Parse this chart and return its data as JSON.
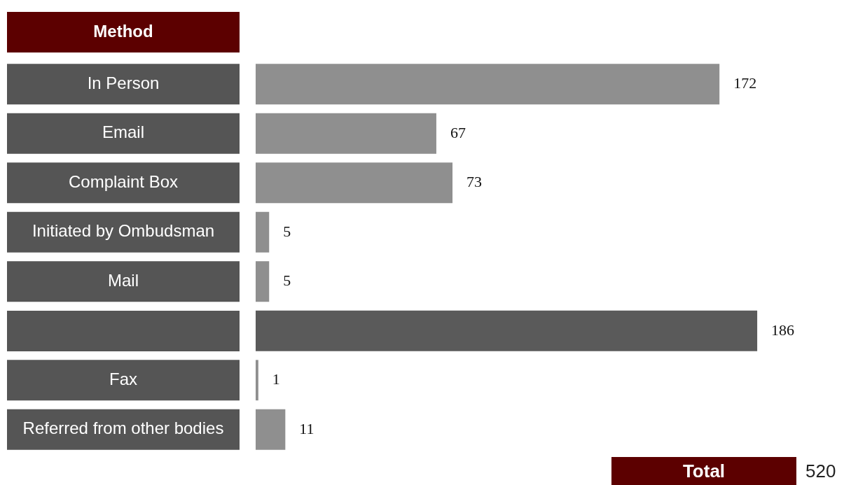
{
  "chart_data": {
    "type": "bar",
    "orientation": "horizontal",
    "ylabel": "Method",
    "categories": [
      "In Person",
      "Email",
      "Complaint Box",
      "Initiated by Ombudsman",
      "Mail",
      null,
      "Fax",
      "Referred from other bodies"
    ],
    "values": [
      172,
      67,
      73,
      5,
      5,
      186,
      1,
      11
    ],
    "colors": [
      "#8f8f8f",
      "#8f8f8f",
      "#8f8f8f",
      "#8f8f8f",
      "#8f8f8f",
      "#5a5a5a",
      "#8f8f8f",
      "#8f8f8f"
    ],
    "data_labels": true,
    "legend": false,
    "annotations": [
      "Total",
      "520"
    ]
  }
}
